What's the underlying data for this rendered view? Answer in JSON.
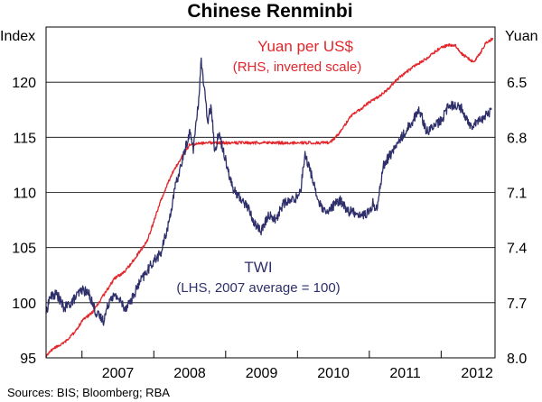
{
  "chart_data": {
    "type": "line",
    "title": "Chinese Renminbi",
    "source": "Sources: BIS; Bloomberg; RBA",
    "left_axis": {
      "unit": "Index",
      "range": [
        95,
        125
      ],
      "ticks": [
        "95",
        "100",
        "105",
        "110",
        "115",
        "120"
      ]
    },
    "right_axis": {
      "unit": "Yuan",
      "range": [
        8.0,
        6.2
      ],
      "inverted": true,
      "ticks": [
        "8.0",
        "7.7",
        "7.4",
        "7.1",
        "6.8",
        "6.5"
      ]
    },
    "x_axis": {
      "range": [
        2006.5,
        2012.75
      ],
      "ticks": [
        "2007",
        "2008",
        "2009",
        "2010",
        "2011",
        "2012"
      ]
    },
    "grid": "horizontal",
    "series": [
      {
        "name": "Yuan per US$",
        "sublabel": "(RHS, inverted scale)",
        "axis": "right",
        "color": "#e3262b",
        "x": [
          2006.5,
          2006.6,
          2006.75,
          2006.9,
          2007.0,
          2007.15,
          2007.3,
          2007.45,
          2007.6,
          2007.75,
          2007.9,
          2008.0,
          2008.1,
          2008.25,
          2008.4,
          2008.5,
          2008.7,
          2009.0,
          2009.5,
          2010.0,
          2010.3,
          2010.45,
          2010.6,
          2010.75,
          2010.9,
          2011.0,
          2011.2,
          2011.4,
          2011.6,
          2011.8,
          2012.0,
          2012.1,
          2012.2,
          2012.3,
          2012.45,
          2012.55,
          2012.62,
          2012.72
        ],
        "y": [
          7.99,
          7.95,
          7.92,
          7.86,
          7.8,
          7.75,
          7.66,
          7.57,
          7.53,
          7.45,
          7.37,
          7.26,
          7.14,
          7.0,
          6.9,
          6.84,
          6.83,
          6.83,
          6.83,
          6.83,
          6.83,
          6.83,
          6.77,
          6.68,
          6.64,
          6.61,
          6.56,
          6.48,
          6.42,
          6.37,
          6.31,
          6.3,
          6.3,
          6.35,
          6.39,
          6.34,
          6.29,
          6.26
        ]
      },
      {
        "name": "TWI",
        "sublabel": "(LHS, 2007 average = 100)",
        "axis": "left",
        "color": "#2e2f6b",
        "x": [
          2006.5,
          2006.55,
          2006.65,
          2006.75,
          2006.85,
          2007.0,
          2007.1,
          2007.2,
          2007.3,
          2007.4,
          2007.5,
          2007.6,
          2007.7,
          2007.8,
          2007.9,
          2008.0,
          2008.1,
          2008.2,
          2008.3,
          2008.4,
          2008.5,
          2008.55,
          2008.62,
          2008.66,
          2008.7,
          2008.75,
          2008.8,
          2008.85,
          2008.9,
          2009.0,
          2009.1,
          2009.2,
          2009.3,
          2009.4,
          2009.5,
          2009.6,
          2009.7,
          2009.8,
          2009.9,
          2010.0,
          2010.05,
          2010.1,
          2010.2,
          2010.3,
          2010.4,
          2010.5,
          2010.6,
          2010.7,
          2010.8,
          2010.9,
          2011.0,
          2011.05,
          2011.1,
          2011.15,
          2011.2,
          2011.3,
          2011.4,
          2011.5,
          2011.6,
          2011.7,
          2011.8,
          2011.9,
          2012.0,
          2012.1,
          2012.2,
          2012.3,
          2012.4,
          2012.5,
          2012.6,
          2012.7
        ],
        "y": [
          99.0,
          100.5,
          100.8,
          99.5,
          100.0,
          101.2,
          100.8,
          99.0,
          98.4,
          100.6,
          100.5,
          99.5,
          100.4,
          101.8,
          102.8,
          103.8,
          104.5,
          107.0,
          110.5,
          113.0,
          115.5,
          114.0,
          118.0,
          122.0,
          119.5,
          116.5,
          118.0,
          113.5,
          115.5,
          113.0,
          110.3,
          109.5,
          108.8,
          107.2,
          106.5,
          108.0,
          107.5,
          109.0,
          109.2,
          109.6,
          110.5,
          113.5,
          111.5,
          109.0,
          108.0,
          108.8,
          109.3,
          108.3,
          108.2,
          107.9,
          108.2,
          109.0,
          108.5,
          110.5,
          112.5,
          113.5,
          114.5,
          115.5,
          116.5,
          117.5,
          115.5,
          116.0,
          116.5,
          117.8,
          118.0,
          117.5,
          116.0,
          116.5,
          116.8,
          117.5
        ]
      }
    ]
  }
}
